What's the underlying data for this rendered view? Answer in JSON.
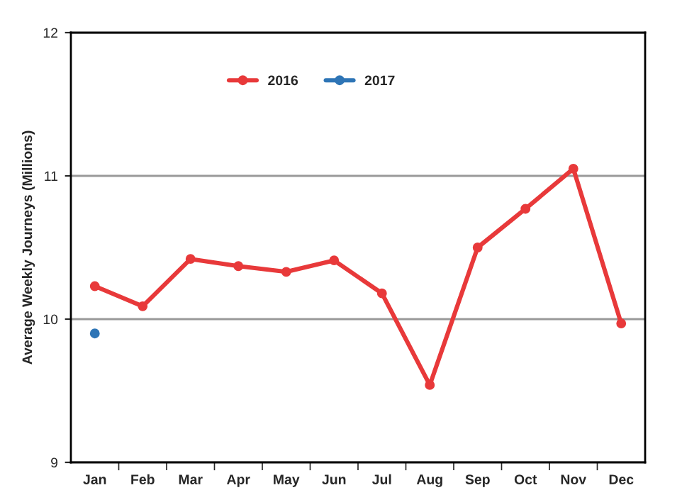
{
  "chart_data": {
    "type": "line",
    "ylabel": "Average Weekly Journeys (Millions)",
    "categories": [
      "Jan",
      "Feb",
      "Mar",
      "Apr",
      "May",
      "Jun",
      "Jul",
      "Aug",
      "Sep",
      "Oct",
      "Nov",
      "Dec"
    ],
    "series": [
      {
        "name": "2016",
        "color": "#e8393a",
        "values": [
          10.23,
          10.09,
          10.42,
          10.37,
          10.33,
          10.41,
          10.18,
          9.54,
          10.5,
          10.77,
          11.05,
          9.97
        ]
      },
      {
        "name": "2017",
        "color": "#2e75b6",
        "values": [
          9.9,
          null,
          null,
          null,
          null,
          null,
          null,
          null,
          null,
          null,
          null,
          null
        ]
      }
    ],
    "ylim": [
      9,
      12
    ],
    "yticks": [
      9,
      10,
      11,
      12
    ],
    "grid": "y",
    "legend": "top",
    "marker": "circle",
    "line_style": "solid"
  }
}
